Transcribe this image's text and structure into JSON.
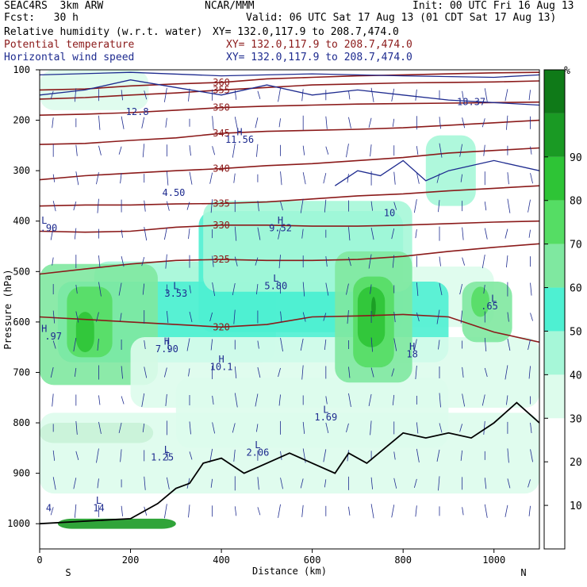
{
  "header": {
    "left1": "SEAC4RS  3km ARW",
    "center1": "NCAR/MMM",
    "right1": "Init: 00 UTC Fri 16 Aug 13",
    "left2": "Fcst:   30 h",
    "right2": "Valid: 06 UTC Sat 17 Aug 13 (01 CDT Sat 17 Aug 13)",
    "fields": [
      {
        "name": "Relative humidity (w.r.t. water)",
        "xy": "XY= 132.0,117.9 to 208.7,474.0",
        "color": "#000000"
      },
      {
        "name": "Potential temperature",
        "xy": "XY= 132.0,117.9 to 208.7,474.0",
        "color": "#8b1a1a"
      },
      {
        "name": "Horizontal wind speed",
        "xy": "XY= 132.0,117.9 to 208.7,474.0",
        "color": "#1e2b8f"
      }
    ]
  },
  "chart_data": {
    "type": "heatmap",
    "title": "",
    "xlabel": "Distance (km)",
    "ylabel": "Pressure (hPa)",
    "x_ticks": [
      0,
      200,
      400,
      600,
      800,
      1000
    ],
    "xlim": [
      0,
      1100
    ],
    "x_end_labels": {
      "left": "S",
      "right": "N"
    },
    "y_ticks": [
      100,
      200,
      300,
      400,
      500,
      600,
      700,
      800,
      900,
      1000
    ],
    "ylim": [
      1050,
      100
    ],
    "colorbar": {
      "unit": "%",
      "ticks": [
        10,
        20,
        30,
        40,
        50,
        60,
        70,
        80,
        90
      ],
      "colors": [
        "#ffffff",
        "#ffffff",
        "#ffffff",
        "#ddfcec",
        "#a6f7d8",
        "#4ef0d2",
        "#7fe8a0",
        "#55dd64",
        "#2ec436",
        "#1a9a24",
        "#0f7a18"
      ]
    },
    "theta_contours": [
      {
        "value": 360,
        "p": [
          140,
          138,
          132,
          128,
          125,
          118,
          115,
          112,
          110,
          108,
          106,
          105
        ]
      },
      {
        "value": 355,
        "p": [
          158,
          155,
          150,
          146,
          140,
          135,
          130,
          128,
          126,
          125,
          124,
          122
        ]
      },
      {
        "value": 350,
        "p": [
          190,
          188,
          185,
          180,
          175,
          172,
          170,
          168,
          167,
          166,
          165,
          164
        ]
      },
      {
        "value": 345,
        "p": [
          248,
          246,
          240,
          235,
          226,
          222,
          220,
          218,
          215,
          210,
          205,
          200
        ]
      },
      {
        "value": 340,
        "p": [
          318,
          310,
          305,
          300,
          296,
          290,
          286,
          280,
          274,
          265,
          260,
          255
        ]
      },
      {
        "value": 335,
        "p": [
          370,
          368,
          368,
          366,
          365,
          362,
          356,
          350,
          346,
          340,
          335,
          330
        ]
      },
      {
        "value": 330,
        "p": [
          420,
          422,
          420,
          412,
          408,
          408,
          410,
          410,
          408,
          405,
          402,
          400
        ]
      },
      {
        "value": 325,
        "p": [
          505,
          495,
          485,
          478,
          476,
          478,
          478,
          476,
          470,
          460,
          452,
          445
        ]
      },
      {
        "value": 320,
        "p": [
          590,
          595,
          600,
          605,
          610,
          605,
          590,
          588,
          585,
          590,
          620,
          640
        ]
      }
    ],
    "rh_labels": [
      {
        "text": "L",
        "x": 10,
        "p": 405
      },
      {
        "text": ".90",
        "x": 20,
        "p": 420
      },
      {
        "text": "H",
        "x": 10,
        "p": 620
      },
      {
        "text": ".97",
        "x": 30,
        "p": 635
      },
      {
        "text": "4.50",
        "x": 295,
        "p": 350
      },
      {
        "text": "12.8",
        "x": 215,
        "p": 190
      },
      {
        "text": "L",
        "x": 300,
        "p": 535
      },
      {
        "text": "3.53",
        "x": 300,
        "p": 550
      },
      {
        "text": "H",
        "x": 280,
        "p": 645
      },
      {
        "text": "7.90",
        "x": 280,
        "p": 660
      },
      {
        "text": "H",
        "x": 400,
        "p": 680
      },
      {
        "text": "10.1",
        "x": 400,
        "p": 695
      },
      {
        "text": "L",
        "x": 520,
        "p": 520
      },
      {
        "text": "5.80",
        "x": 520,
        "p": 535
      },
      {
        "text": "H",
        "x": 530,
        "p": 405
      },
      {
        "text": "9.52",
        "x": 530,
        "p": 420
      },
      {
        "text": "H",
        "x": 440,
        "p": 230
      },
      {
        "text": "11.56",
        "x": 440,
        "p": 245
      },
      {
        "text": "L",
        "x": 630,
        "p": 780
      },
      {
        "text": "1.69",
        "x": 630,
        "p": 795
      },
      {
        "text": "L",
        "x": 480,
        "p": 850
      },
      {
        "text": "2.06",
        "x": 480,
        "p": 865
      },
      {
        "text": "L",
        "x": 280,
        "p": 860
      },
      {
        "text": "1.25",
        "x": 270,
        "p": 875
      },
      {
        "text": "L",
        "x": 130,
        "p": 960
      },
      {
        "text": "14",
        "x": 130,
        "p": 975
      },
      {
        "text": "4",
        "x": 20,
        "p": 975
      },
      {
        "text": "H",
        "x": 820,
        "p": 655
      },
      {
        "text": "18",
        "x": 820,
        "p": 670
      },
      {
        "text": "L",
        "x": 1000,
        "p": 560
      },
      {
        "text": ".65",
        "x": 990,
        "p": 575
      },
      {
        "text": "18.37",
        "x": 950,
        "p": 170
      },
      {
        "text": "10",
        "x": 770,
        "p": 390
      }
    ],
    "tick_label_font_px": 12
  }
}
